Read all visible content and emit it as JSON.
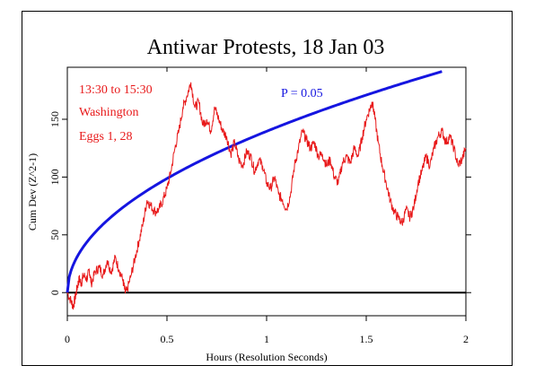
{
  "chart_data": {
    "type": "line",
    "title": "Antiwar Protests, 18 Jan 03",
    "xlabel": "Hours (Resolution Seconds)",
    "ylabel": "Cum Dev (Z^2-1)",
    "xlim": [
      0,
      2
    ],
    "ylim": [
      -20,
      195
    ],
    "x_ticks": [
      0,
      0.5,
      1,
      1.5,
      2
    ],
    "x_tick_labels": [
      "0",
      "0.5",
      "1",
      "1.5",
      "2"
    ],
    "y_ticks": [
      0,
      50,
      100,
      150
    ],
    "y_tick_labels": [
      "0",
      "50",
      "100",
      "150"
    ],
    "annotations": [
      "13:30 to 15:30",
      "Washington",
      "Eggs 1, 28"
    ],
    "envelope_label": "P = 0.05",
    "series": [
      {
        "color": "#e8191a",
        "points": [
          [
            0.0,
            0
          ],
          [
            0.02,
            -8
          ],
          [
            0.03,
            -12
          ],
          [
            0.04,
            -4
          ],
          [
            0.05,
            5
          ],
          [
            0.06,
            12
          ],
          [
            0.07,
            8
          ],
          [
            0.08,
            15
          ],
          [
            0.1,
            12
          ],
          [
            0.11,
            20
          ],
          [
            0.12,
            8
          ],
          [
            0.14,
            18
          ],
          [
            0.16,
            22
          ],
          [
            0.18,
            15
          ],
          [
            0.2,
            28
          ],
          [
            0.22,
            18
          ],
          [
            0.24,
            30
          ],
          [
            0.26,
            20
          ],
          [
            0.28,
            10
          ],
          [
            0.29,
            0
          ],
          [
            0.3,
            2
          ],
          [
            0.32,
            15
          ],
          [
            0.34,
            30
          ],
          [
            0.36,
            45
          ],
          [
            0.38,
            60
          ],
          [
            0.4,
            80
          ],
          [
            0.42,
            75
          ],
          [
            0.44,
            70
          ],
          [
            0.46,
            72
          ],
          [
            0.48,
            80
          ],
          [
            0.5,
            90
          ],
          [
            0.52,
            105
          ],
          [
            0.54,
            125
          ],
          [
            0.56,
            140
          ],
          [
            0.58,
            160
          ],
          [
            0.6,
            170
          ],
          [
            0.62,
            182
          ],
          [
            0.64,
            160
          ],
          [
            0.66,
            165
          ],
          [
            0.68,
            145
          ],
          [
            0.7,
            150
          ],
          [
            0.72,
            140
          ],
          [
            0.74,
            160
          ],
          [
            0.76,
            150
          ],
          [
            0.78,
            140
          ],
          [
            0.8,
            135
          ],
          [
            0.82,
            120
          ],
          [
            0.84,
            130
          ],
          [
            0.86,
            115
          ],
          [
            0.88,
            110
          ],
          [
            0.9,
            122
          ],
          [
            0.92,
            118
          ],
          [
            0.94,
            105
          ],
          [
            0.96,
            115
          ],
          [
            0.98,
            110
          ],
          [
            1.0,
            95
          ],
          [
            1.02,
            90
          ],
          [
            1.04,
            100
          ],
          [
            1.06,
            85
          ],
          [
            1.08,
            80
          ],
          [
            1.1,
            72
          ],
          [
            1.12,
            85
          ],
          [
            1.14,
            110
          ],
          [
            1.16,
            125
          ],
          [
            1.18,
            140
          ],
          [
            1.2,
            132
          ],
          [
            1.22,
            125
          ],
          [
            1.24,
            130
          ],
          [
            1.26,
            118
          ],
          [
            1.28,
            120
          ],
          [
            1.3,
            110
          ],
          [
            1.32,
            115
          ],
          [
            1.34,
            100
          ],
          [
            1.36,
            95
          ],
          [
            1.38,
            112
          ],
          [
            1.4,
            118
          ],
          [
            1.42,
            112
          ],
          [
            1.44,
            125
          ],
          [
            1.46,
            118
          ],
          [
            1.48,
            135
          ],
          [
            1.5,
            150
          ],
          [
            1.52,
            160
          ],
          [
            1.53,
            165
          ],
          [
            1.54,
            155
          ],
          [
            1.56,
            130
          ],
          [
            1.58,
            110
          ],
          [
            1.6,
            95
          ],
          [
            1.62,
            80
          ],
          [
            1.64,
            70
          ],
          [
            1.66,
            65
          ],
          [
            1.68,
            60
          ],
          [
            1.7,
            72
          ],
          [
            1.72,
            65
          ],
          [
            1.74,
            75
          ],
          [
            1.76,
            95
          ],
          [
            1.78,
            105
          ],
          [
            1.8,
            118
          ],
          [
            1.82,
            110
          ],
          [
            1.84,
            125
          ],
          [
            1.86,
            135
          ],
          [
            1.88,
            140
          ],
          [
            1.9,
            130
          ],
          [
            1.92,
            135
          ],
          [
            1.94,
            125
          ],
          [
            1.96,
            110
          ],
          [
            1.98,
            115
          ],
          [
            2.0,
            125
          ]
        ]
      },
      {
        "name": "P = 0.05",
        "color": "#1515e0",
        "function": "1.645*sqrt(2*t*3600)",
        "x_range": [
          0,
          1.88
        ]
      }
    ],
    "reference_line": 0
  }
}
